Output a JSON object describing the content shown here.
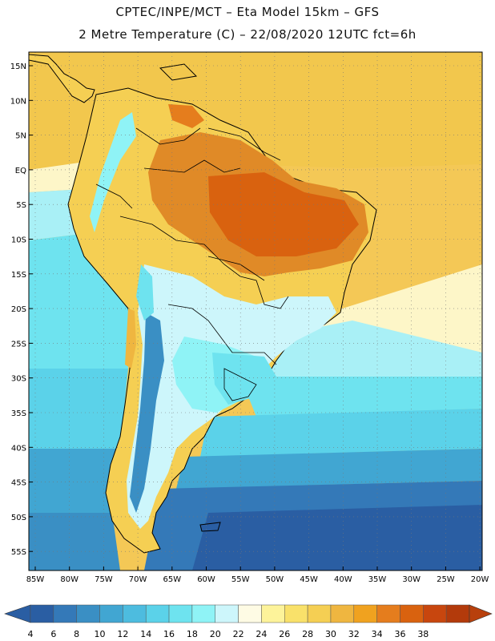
{
  "title_line1": "CPTEC/INPE/MCT –  Eta Model 15km – GFS",
  "title_line2": "2 Metre Temperature (C) – 22/08/2020 12UTC fct=6h",
  "lat_labels": [
    "15N",
    "10N",
    "5N",
    "EQ",
    "5S",
    "10S",
    "15S",
    "20S",
    "25S",
    "30S",
    "35S",
    "40S",
    "45S",
    "50S",
    "55S"
  ],
  "lon_labels": [
    "85W",
    "80W",
    "75W",
    "70W",
    "65W",
    "60W",
    "55W",
    "50W",
    "45W",
    "40W",
    "35W",
    "30W",
    "25W",
    "20W"
  ],
  "colorbar": {
    "labels": [
      "4",
      "6",
      "8",
      "10",
      "12",
      "14",
      "16",
      "18",
      "20",
      "22",
      "24",
      "26",
      "28",
      "30",
      "32",
      "34",
      "36",
      "38"
    ],
    "colors": [
      "#2a5ea3",
      "#3479b8",
      "#3a8fc4",
      "#41a6d2",
      "#4dbcdf",
      "#5bd2e9",
      "#6ee3ef",
      "#8ff3f6",
      "#cdf6fb",
      "#fefbe4",
      "#fdf39a",
      "#f9e16a",
      "#f5cf53",
      "#efb640",
      "#f0a21f",
      "#e57d1d",
      "#d9620f",
      "#c8460e",
      "#b33a0b"
    ],
    "low_arrow_color": "#2a5ea3",
    "high_arrow_color": "#b8400c"
  }
}
